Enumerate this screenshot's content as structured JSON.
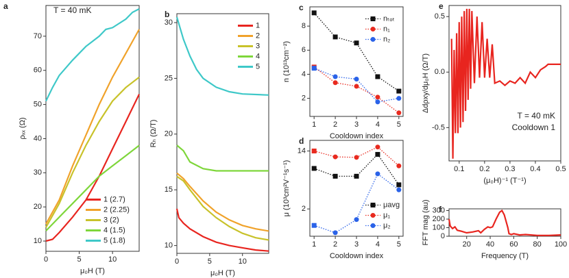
{
  "chart_data": [
    {
      "type": "line",
      "panel_label": "a",
      "x_label": "μ₀H (T)",
      "y_label": "ρₓₓ (Ω)",
      "annotations": [
        "T = 40 mK"
      ],
      "xlim": [
        0,
        14
      ],
      "ylim": [
        7,
        79
      ],
      "xticks": [
        0,
        5,
        10
      ],
      "yticks": [
        10,
        20,
        30,
        40,
        50,
        60,
        70
      ],
      "legend": "lower right",
      "series": [
        {
          "name": "1 (2.7)",
          "color": "#e8251f",
          "x": [
            0,
            1,
            2,
            4,
            6,
            8,
            10,
            12,
            14
          ],
          "values": [
            10,
            10.5,
            12.5,
            17,
            22,
            29,
            37,
            45,
            53
          ]
        },
        {
          "name": "2 (2.25)",
          "color": "#f0a22a",
          "x": [
            0,
            2,
            4,
            6,
            8,
            10,
            12,
            14
          ],
          "values": [
            15,
            22,
            32,
            41,
            50,
            58,
            65,
            72
          ]
        },
        {
          "name": "3 (2)",
          "color": "#c8c22a",
          "x": [
            0,
            2,
            4,
            6,
            8,
            10,
            12,
            14
          ],
          "values": [
            14,
            21,
            30,
            38,
            45,
            51,
            55,
            58
          ]
        },
        {
          "name": "4 (1.5)",
          "color": "#7ed63a",
          "x": [
            0,
            2,
            4,
            6,
            8,
            10,
            12,
            14
          ],
          "values": [
            13,
            17,
            21,
            25,
            29,
            32,
            35,
            38
          ]
        },
        {
          "name": "5 (1.8)",
          "color": "#3ec8c8",
          "x": [
            0,
            1,
            2,
            4,
            6,
            8,
            9,
            10,
            12,
            13,
            14
          ],
          "values": [
            51,
            55,
            58.5,
            63,
            67,
            70,
            72,
            72.5,
            75,
            77,
            78
          ]
        }
      ]
    },
    {
      "type": "line",
      "panel_label": "b",
      "x_label": "μ₀H (T)",
      "y_label": "Rₕ (Ω/T)",
      "xlim": [
        0,
        14
      ],
      "ylim": [
        9.3,
        30.8
      ],
      "xticks": [
        0,
        5,
        10
      ],
      "yticks": [
        10,
        15,
        20,
        25,
        30
      ],
      "legend": "upper right",
      "series": [
        {
          "name": "1",
          "color": "#e8251f",
          "x": [
            0,
            0.3,
            1,
            2,
            4,
            6,
            8,
            10,
            12,
            14
          ],
          "values": [
            13.3,
            12.5,
            12,
            11.5,
            10.8,
            10.3,
            10,
            9.8,
            9.6,
            9.5
          ]
        },
        {
          "name": "2",
          "color": "#f0a22a",
          "x": [
            0,
            1,
            2,
            4,
            6,
            8,
            10,
            12,
            14
          ],
          "values": [
            16.5,
            16,
            15.3,
            14,
            13,
            12.3,
            11.8,
            11.5,
            11.3
          ]
        },
        {
          "name": "3",
          "color": "#c8c22a",
          "x": [
            0,
            1,
            2,
            4,
            6,
            8,
            10,
            12,
            14
          ],
          "values": [
            16.2,
            15.8,
            15,
            13.5,
            12.5,
            11.7,
            11.1,
            10.7,
            10.5
          ]
        },
        {
          "name": "4",
          "color": "#7ed63a",
          "x": [
            0,
            1,
            2,
            4,
            6,
            8,
            14
          ],
          "values": [
            19,
            18.5,
            17.5,
            16.9,
            16.7,
            16.7,
            16.7
          ]
        },
        {
          "name": "5",
          "color": "#3ec8c8",
          "x": [
            0,
            1,
            2,
            3,
            4,
            6,
            8,
            10,
            14
          ],
          "values": [
            30.5,
            28.5,
            27,
            25.8,
            25,
            24.2,
            23.8,
            23.6,
            23.5
          ]
        }
      ]
    },
    {
      "type": "line",
      "panel_label": "c",
      "x_label": "Cooldown index",
      "y_label": "n (10¹³cm⁻²)",
      "xlim": [
        0.8,
        5.2
      ],
      "ylim": [
        0.5,
        9.6
      ],
      "xticks": [
        1,
        2,
        3,
        4,
        5
      ],
      "yticks": [
        2,
        4,
        6,
        8
      ],
      "legend": "upper right",
      "markers": true,
      "dotted": true,
      "series": [
        {
          "name": "nₜₒₜ",
          "color": "#111111",
          "x": [
            1,
            2,
            3,
            4,
            5
          ],
          "values": [
            9.1,
            7.1,
            6.6,
            3.8,
            2.6
          ]
        },
        {
          "name": "n₁",
          "color": "#e82a1f",
          "x": [
            1,
            2,
            3,
            4,
            5
          ],
          "values": [
            4.6,
            3.3,
            3.0,
            2.1,
            0.8
          ]
        },
        {
          "name": "n₂",
          "color": "#2a62e8",
          "x": [
            1,
            2,
            3,
            4,
            5
          ],
          "values": [
            4.5,
            3.8,
            3.6,
            1.7,
            2.0
          ]
        }
      ]
    },
    {
      "type": "line",
      "panel_label": "d",
      "x_label": "Cooldown index",
      "y_label": "μ (10³cm²V⁻¹s⁻¹)",
      "xlim": [
        0.8,
        5.2
      ],
      "ylim": [
        0.8,
        20
      ],
      "xticks": [
        1,
        2,
        3,
        4,
        5
      ],
      "yticks": [
        2,
        14
      ],
      "log_y": true,
      "legend": "lower right",
      "markers": true,
      "dotted": true,
      "series": [
        {
          "name": "μavg",
          "color": "#111111",
          "x": [
            1,
            2,
            3,
            4,
            5
          ],
          "values": [
            7.8,
            6,
            6,
            12.5,
            4.5
          ]
        },
        {
          "name": "μ₁",
          "color": "#e82a1f",
          "x": [
            1,
            2,
            3,
            4,
            5
          ],
          "values": [
            14,
            11.5,
            11.3,
            16,
            8.5
          ]
        },
        {
          "name": "μ₂",
          "color": "#2a62e8",
          "x": [
            1,
            2,
            3,
            4,
            5
          ],
          "values": [
            1.15,
            0.9,
            1.4,
            6.5,
            3.8
          ]
        }
      ]
    },
    {
      "type": "line",
      "panel_label": "e",
      "x_label": "(μ₀H)⁻¹ (T⁻¹)",
      "y_label": "Δdρxy/dμ₀H (Ω/T)",
      "annotations": [
        "T = 40 mK",
        "Cooldown 1"
      ],
      "xlim": [
        0.06,
        0.5
      ],
      "ylim": [
        -0.8,
        0.6
      ],
      "xticks": [
        0.1,
        0.2,
        0.3,
        0.4,
        0.5
      ],
      "yticks": [
        {
          "value": -0.5,
          "label": "-0.5"
        },
        {
          "value": 0,
          "label": "0.0"
        },
        {
          "value": 0.5,
          "label": "0.5"
        }
      ],
      "color": "#e8251f",
      "x": [
        0.07,
        0.075,
        0.08,
        0.085,
        0.09,
        0.095,
        0.1,
        0.105,
        0.11,
        0.115,
        0.12,
        0.125,
        0.13,
        0.135,
        0.14,
        0.145,
        0.15,
        0.16,
        0.17,
        0.18,
        0.19,
        0.2,
        0.21,
        0.22,
        0.23,
        0.24,
        0.26,
        0.28,
        0.3,
        0.32,
        0.34,
        0.36,
        0.38,
        0.4,
        0.42,
        0.44,
        0.45,
        0.5
      ],
      "values": [
        0.3,
        -0.78,
        0.2,
        -0.55,
        0.35,
        -0.55,
        0.45,
        -0.5,
        0.5,
        -0.45,
        0.55,
        -0.35,
        0.57,
        -0.25,
        0.57,
        -0.15,
        0.55,
        -0.1,
        0.5,
        -0.05,
        0.45,
        -0.05,
        0.3,
        -0.05,
        0.25,
        -0.1,
        -0.08,
        -0.12,
        -0.08,
        -0.1,
        -0.05,
        -0.1,
        0,
        -0.05,
        0.02,
        0.05,
        0.07,
        0.07
      ]
    },
    {
      "type": "line",
      "panel_label": "f",
      "x_label": "Frequency (T)",
      "y_label": "FFT mag (au)",
      "xlim": [
        5,
        100
      ],
      "ylim": [
        0,
        320
      ],
      "xticks": [
        20,
        40,
        60,
        80,
        100
      ],
      "yticks": [
        0,
        100,
        200,
        300
      ],
      "color": "#e8251f",
      "x": [
        5,
        6,
        8,
        10,
        12,
        15,
        20,
        25,
        30,
        32,
        35,
        38,
        40,
        42,
        45,
        48,
        50,
        52,
        55,
        56,
        58,
        60,
        65,
        70,
        80,
        90,
        100
      ],
      "values": [
        200,
        120,
        90,
        110,
        70,
        60,
        40,
        50,
        65,
        40,
        80,
        110,
        100,
        110,
        200,
        280,
        300,
        250,
        100,
        30,
        20,
        30,
        15,
        20,
        10,
        10,
        15
      ]
    }
  ]
}
